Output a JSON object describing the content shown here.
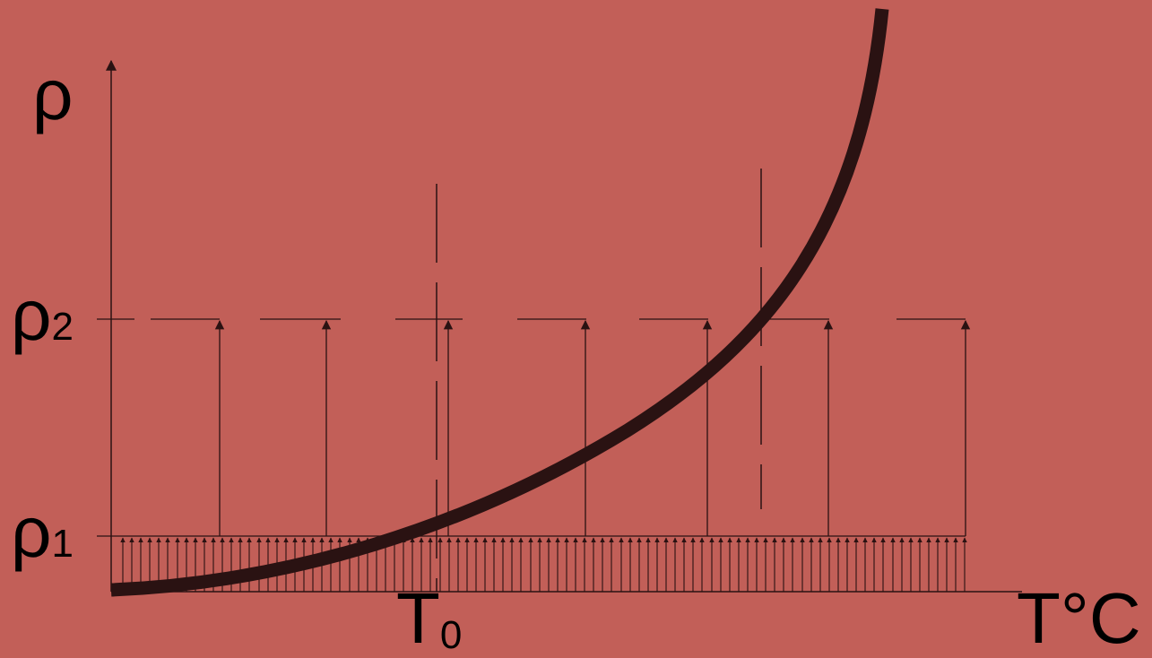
{
  "labels": {
    "y_axis": "ρ",
    "rho2": "ρ",
    "rho2_sub": "2",
    "rho1": "ρ",
    "rho1_sub": "1",
    "t0": "T",
    "t0_sub": "0",
    "x_axis": "T°C"
  },
  "colors": {
    "background": "#c25f58",
    "ink": "#2a1212"
  }
}
